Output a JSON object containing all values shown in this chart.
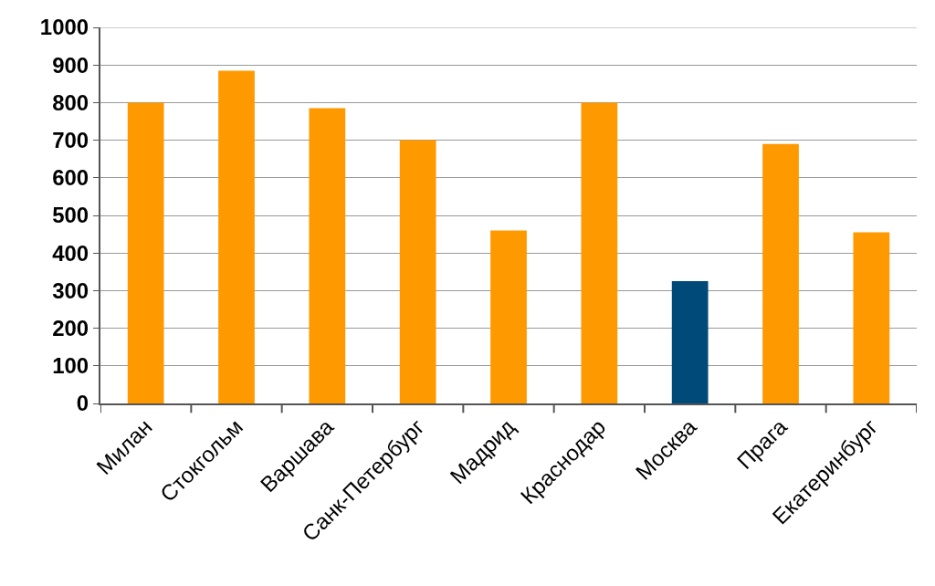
{
  "chart_data": {
    "type": "bar",
    "categories": [
      "Милан",
      "Стокгольм",
      "Варшава",
      "Санк-Петербург",
      "Мадрид",
      "Краснодар",
      "Москва",
      "Прага",
      "Екатеринбург"
    ],
    "values": [
      800,
      885,
      785,
      700,
      460,
      800,
      325,
      690,
      455
    ],
    "colors": [
      "#ff9900",
      "#ff9900",
      "#ff9900",
      "#ff9900",
      "#ff9900",
      "#ff9900",
      "#004a7a",
      "#ff9900",
      "#ff9900"
    ],
    "ylim": [
      0,
      1000
    ],
    "yticks": [
      0,
      100,
      200,
      300,
      400,
      500,
      600,
      700,
      800,
      900,
      1000
    ],
    "grid": "y"
  }
}
